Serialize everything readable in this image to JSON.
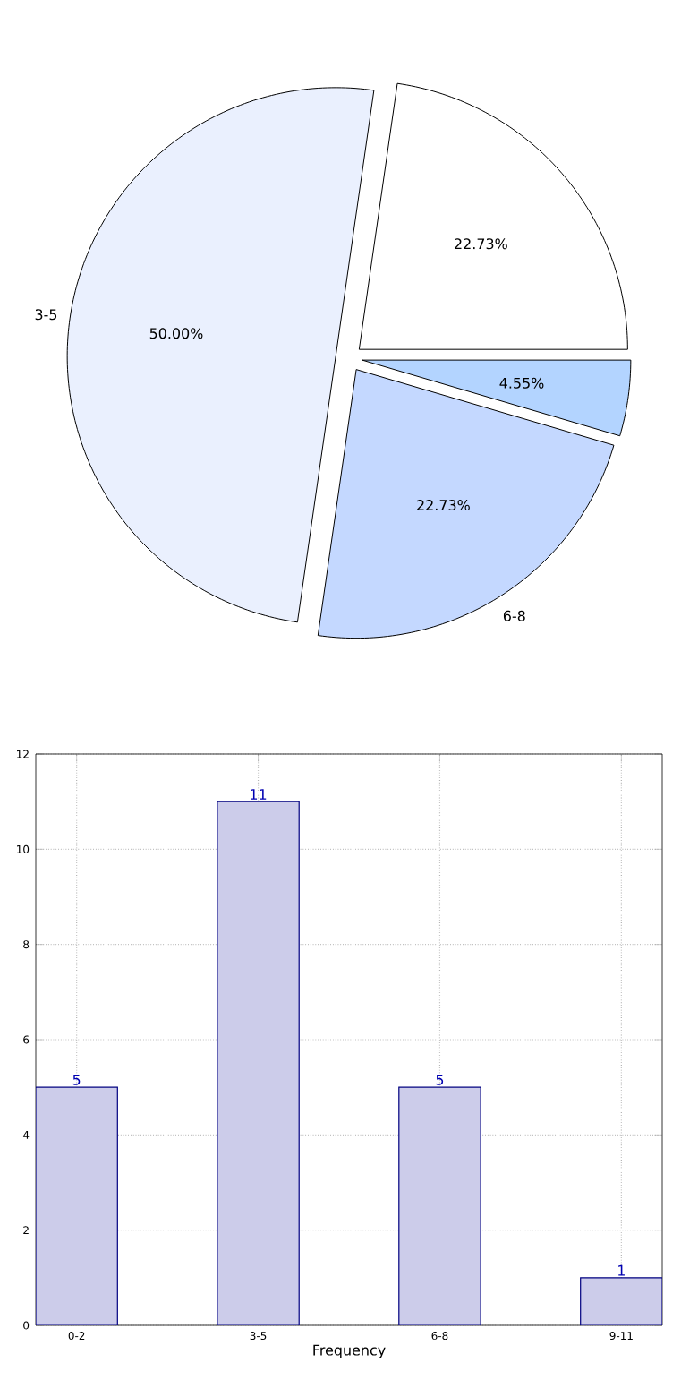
{
  "chart_data": [
    {
      "type": "pie",
      "categories": [
        null,
        "3-5",
        "6-8",
        null
      ],
      "values": [
        22.73,
        50.0,
        22.73,
        4.55
      ],
      "colors": [
        "#ffffff",
        "#eaf0fe",
        "#c4d8ff",
        "#b3d4ff"
      ],
      "value_labels": [
        "22.73%",
        "50.00%",
        "22.73%",
        "4.55%"
      ]
    },
    {
      "type": "bar",
      "categories": [
        "0-2",
        "3-5",
        "6-8",
        "9-11"
      ],
      "values": [
        5,
        11,
        5,
        1
      ],
      "color": "#ccccea",
      "xlabel": "Frequency",
      "ylim": [
        0,
        12
      ],
      "yticks": [
        0,
        2,
        4,
        6,
        8,
        10,
        12
      ],
      "grid": true,
      "data_labels": true
    }
  ]
}
